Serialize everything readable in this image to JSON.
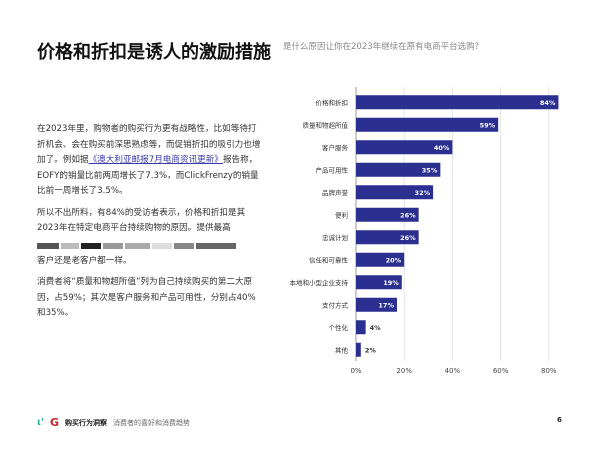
{
  "title": "价格和折扣是诱人的激励措施",
  "paragraphs": {
    "p1_before": "在2023年里，购物者的购买行为更有战略性，比如等待打折机会、会在购买前深思熟虑等，而促销折扣的吸引力也增加了。例如据",
    "p1_link": "《澳大利亚邮报7月电商资讯更新》",
    "p1_after": "报告称，EOFY的销量比前两周增长了7.3%，而ClickFrenzy的销量比前一周增长了3.5%。",
    "p2a": "所以不出所料，有84%的受访者表示，价格和折扣是其2023年在特定电商平台持续购物的原因。提供最高",
    "p2b": "客户还是老客户都一样。",
    "p3": "消费者将“质量和物超所值”列为自己持续购买的第二大原因，占59%；其次是客户服务和产品可用性，分别占40%和35%。"
  },
  "chart_data": {
    "type": "bar",
    "orientation": "horizontal",
    "title": "是什么原因让你在2023年继续在原有电商平台选购?",
    "categories": [
      "价格和折扣",
      "质量和物超所值",
      "客户服务",
      "产品可用性",
      "品牌声誉",
      "便利",
      "忠诚计划",
      "信任和可靠性",
      "本地和小型企业支持",
      "支付方式",
      "个性化",
      "其他"
    ],
    "values": [
      84,
      59,
      40,
      35,
      32,
      26,
      26,
      20,
      19,
      17,
      4,
      2
    ],
    "value_labels": [
      "84%",
      "59%",
      "40%",
      "35%",
      "32%",
      "26%",
      "26%",
      "20%",
      "19%",
      "17%",
      "4%",
      "2%"
    ],
    "xlim": [
      0,
      85
    ],
    "xticks": [
      "0%",
      "20%",
      "40%",
      "60%",
      "80%"
    ],
    "xtick_values": [
      0,
      20,
      40,
      60,
      80
    ],
    "bar_color": "#2b2f8f",
    "grid": true
  },
  "footer": {
    "brand": "购买行为洞察",
    "subtitle": "消费者的喜好和消费趋势",
    "page": "6"
  }
}
